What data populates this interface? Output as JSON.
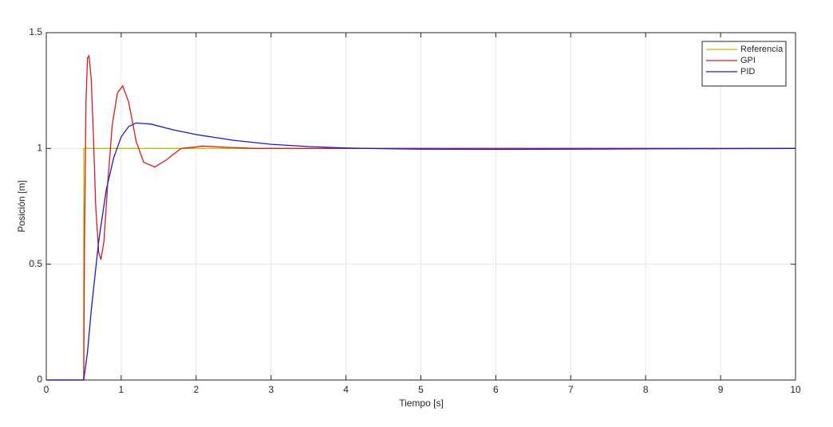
{
  "chart_data": {
    "type": "line",
    "xlabel": "Tiempo [s]",
    "ylabel": "Posición [m]",
    "xlim": [
      0,
      10
    ],
    "ylim": [
      0,
      1.5
    ],
    "xticks": [
      0,
      1,
      2,
      3,
      4,
      5,
      6,
      7,
      8,
      9,
      10
    ],
    "yticks": [
      0,
      0.5,
      1,
      1.5
    ],
    "grid": true,
    "legend": "northeast",
    "series": [
      {
        "name": "Referencia",
        "color": "#bfbf00",
        "x": [
          0,
          0.5,
          0.5,
          10
        ],
        "values": [
          0,
          0,
          1,
          1
        ]
      },
      {
        "name": "GPI",
        "color": "#d91a1a",
        "x": [
          0,
          0.5,
          0.51,
          0.53,
          0.55,
          0.57,
          0.6,
          0.63,
          0.66,
          0.7,
          0.73,
          0.77,
          0.82,
          0.88,
          0.95,
          1.02,
          1.1,
          1.2,
          1.3,
          1.45,
          1.6,
          1.8,
          2.1,
          2.4,
          2.8,
          3.5,
          10
        ],
        "values": [
          0,
          0,
          0.6,
          1.2,
          1.39,
          1.4,
          1.3,
          1.05,
          0.75,
          0.55,
          0.52,
          0.6,
          0.85,
          1.1,
          1.24,
          1.27,
          1.2,
          1.03,
          0.94,
          0.92,
          0.95,
          1.0,
          1.01,
          1.005,
          1.0,
          1.0,
          1.0
        ]
      },
      {
        "name": "PID",
        "color": "#1a1acc",
        "x": [
          0,
          0.5,
          0.55,
          0.6,
          0.7,
          0.8,
          0.9,
          1.0,
          1.1,
          1.2,
          1.4,
          1.7,
          2.0,
          2.5,
          3,
          3.5,
          4,
          4.5,
          5,
          6,
          7,
          8,
          9,
          10
        ],
        "values": [
          0,
          0,
          0.12,
          0.3,
          0.6,
          0.82,
          0.96,
          1.05,
          1.095,
          1.11,
          1.105,
          1.08,
          1.06,
          1.035,
          1.018,
          1.008,
          1.002,
          0.999,
          0.997,
          0.996,
          0.997,
          0.998,
          0.999,
          1.0
        ]
      }
    ]
  }
}
